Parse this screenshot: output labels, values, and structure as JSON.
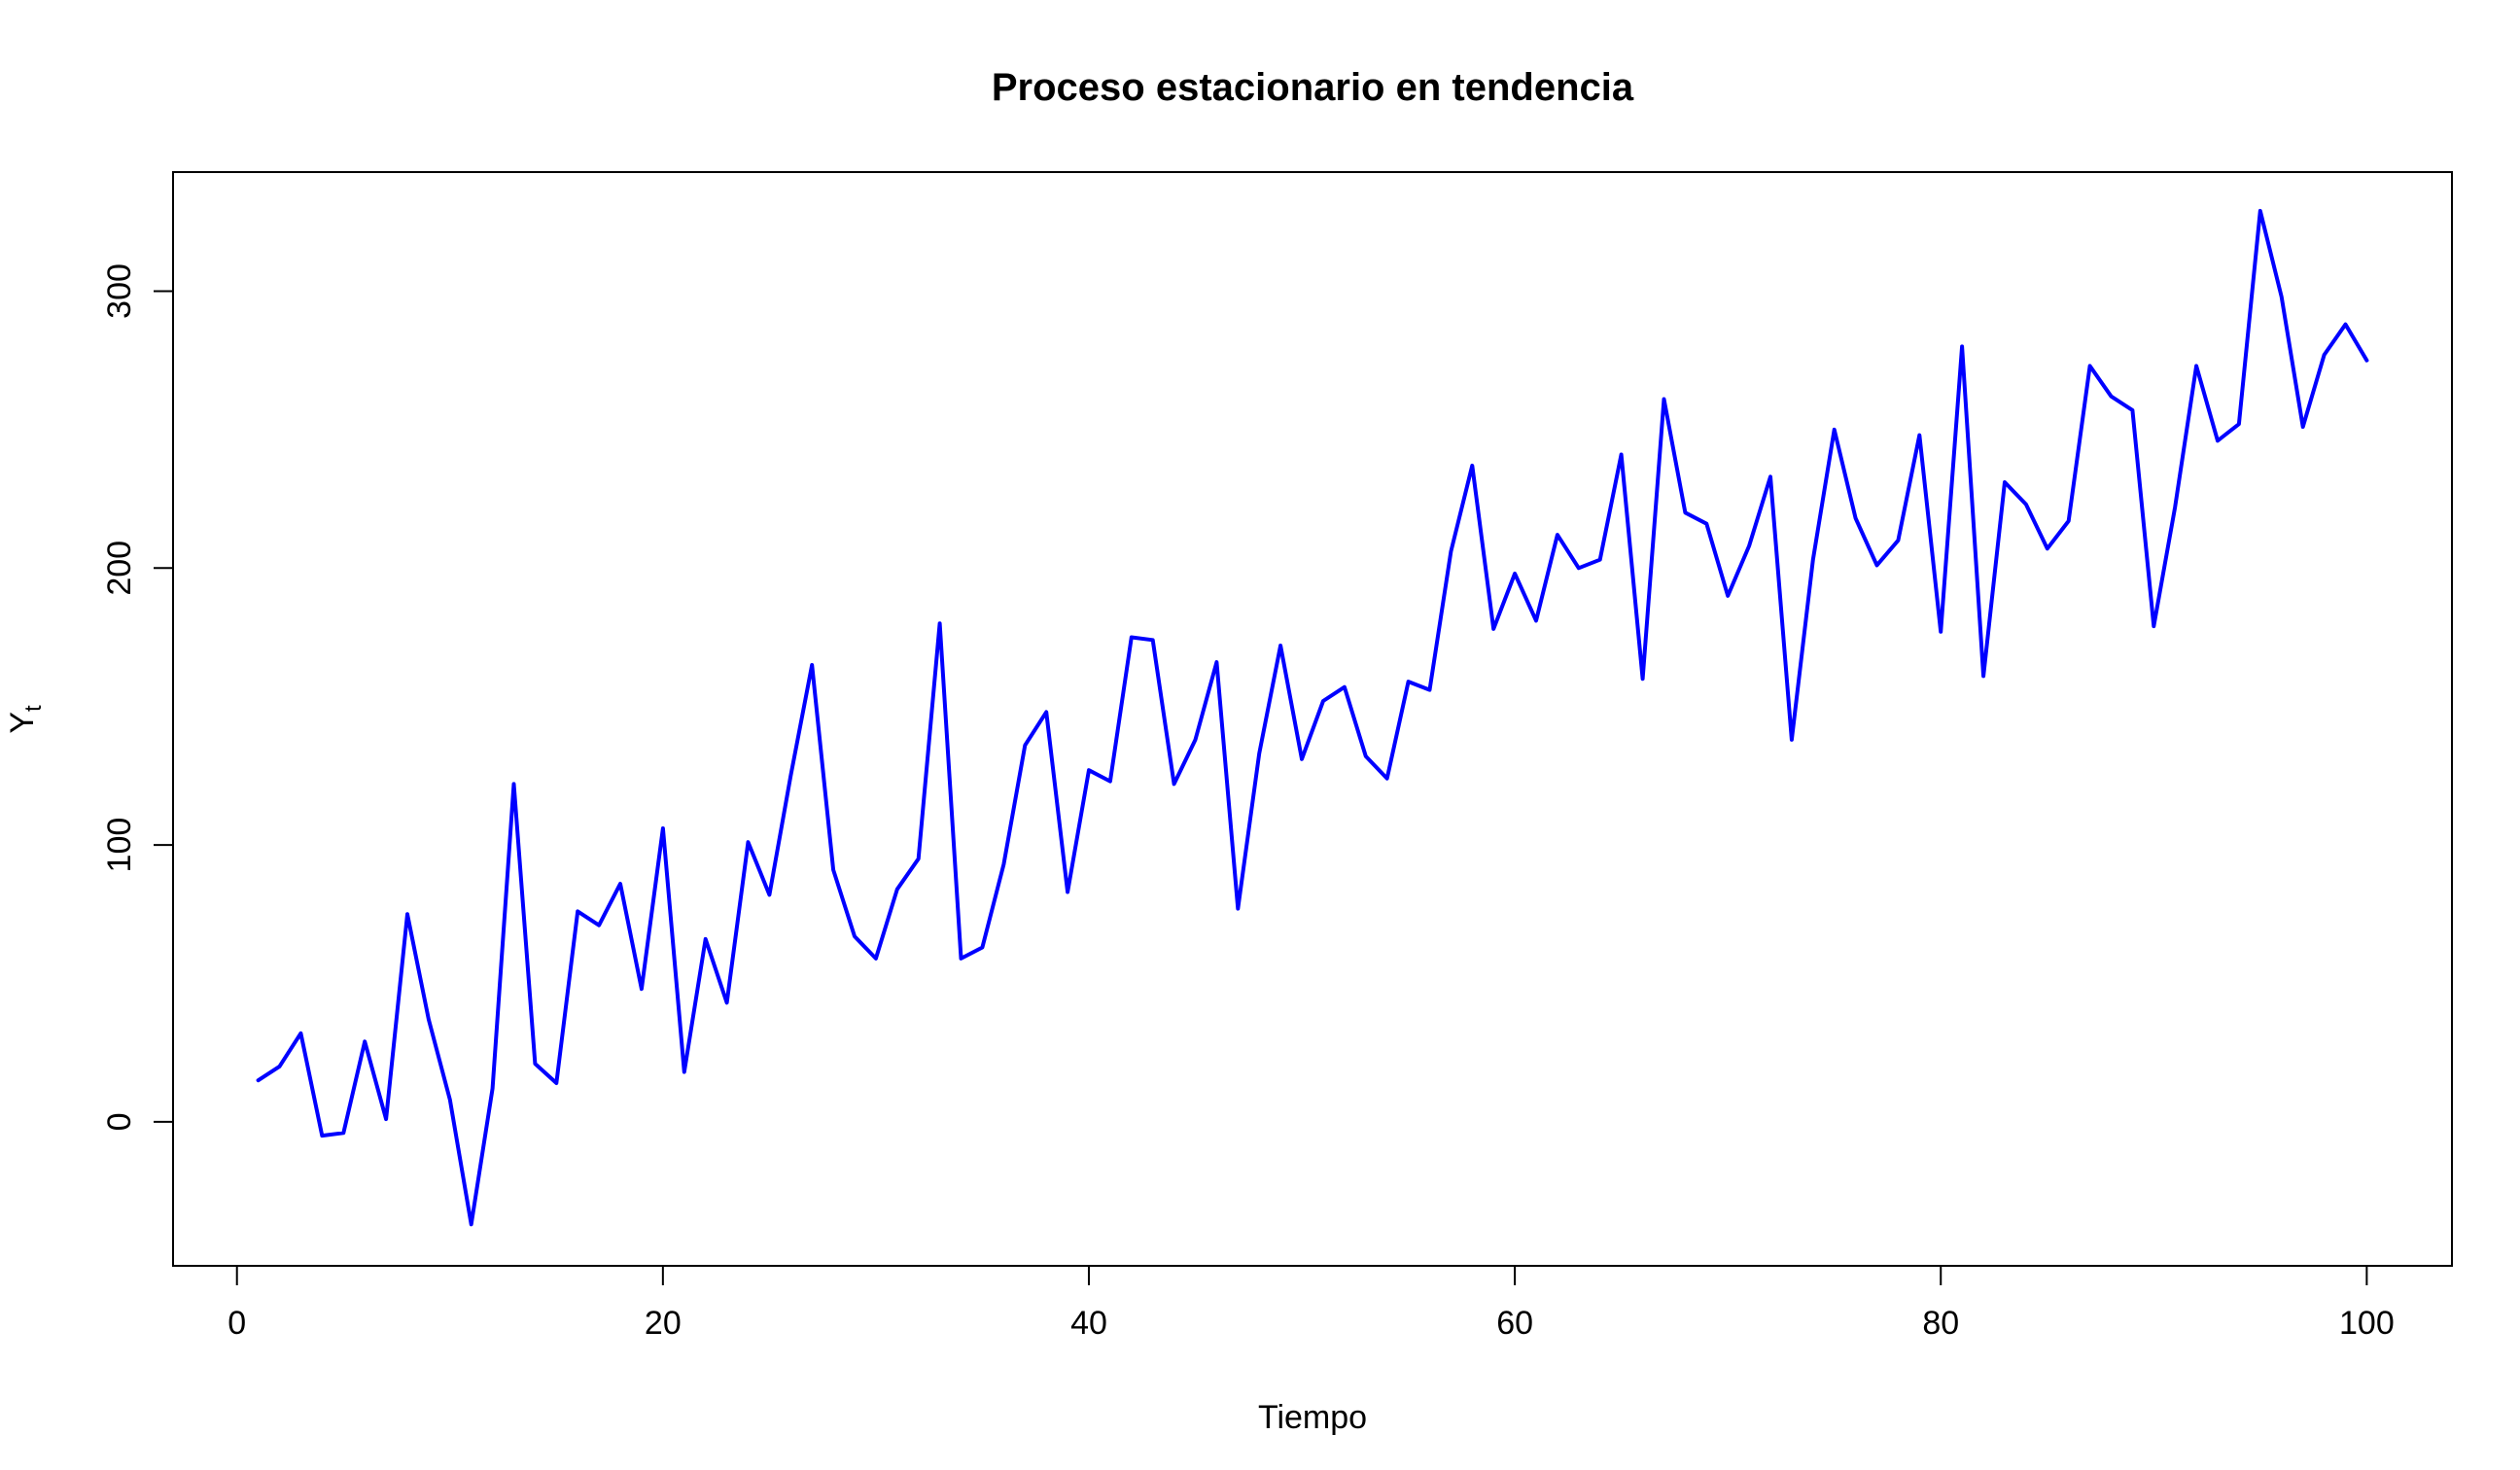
{
  "chart_data": {
    "type": "line",
    "title": "Proceso estacionario en tendencia",
    "xlabel": "Tiempo",
    "ylabel": {
      "main": "Y",
      "subscript": "t"
    },
    "xlim": [
      -3,
      104
    ],
    "ylim": [
      -52,
      343
    ],
    "xticks": [
      0,
      20,
      40,
      60,
      80,
      100
    ],
    "yticks": [
      0,
      100,
      200,
      300
    ],
    "grid": false,
    "legend": "none",
    "series": [
      {
        "color": "#0000ff",
        "x": [
          1,
          2,
          3,
          4,
          5,
          6,
          7,
          8,
          9,
          10,
          11,
          12,
          13,
          14,
          15,
          16,
          17,
          18,
          19,
          20,
          21,
          22,
          23,
          24,
          25,
          26,
          27,
          28,
          29,
          30,
          31,
          32,
          33,
          34,
          35,
          36,
          37,
          38,
          39,
          40,
          41,
          42,
          43,
          44,
          45,
          46,
          47,
          48,
          49,
          50,
          51,
          52,
          53,
          54,
          55,
          56,
          57,
          58,
          59,
          60,
          61,
          62,
          63,
          64,
          65,
          66,
          67,
          68,
          69,
          70,
          71,
          72,
          73,
          74,
          75,
          76,
          77,
          78,
          79,
          80,
          81,
          82,
          83,
          84,
          85,
          86,
          87,
          88,
          89,
          90,
          91,
          92,
          93,
          94,
          95,
          96,
          97,
          98,
          99,
          100
        ],
        "y": [
          15,
          20,
          32,
          -5,
          -4,
          29,
          1,
          75,
          37,
          8,
          -37,
          12,
          122,
          21,
          14,
          76,
          71,
          86,
          48,
          106,
          18,
          66,
          43,
          101,
          82,
          125,
          165,
          91,
          67,
          59,
          84,
          95,
          180,
          59,
          63,
          93,
          136,
          148,
          83,
          127,
          123,
          175,
          174,
          122,
          138,
          166,
          77,
          133,
          172,
          131,
          152,
          157,
          132,
          124,
          159,
          156,
          206,
          237,
          178,
          198,
          181,
          212,
          200,
          203,
          241,
          160,
          261,
          220,
          216,
          190,
          208,
          233,
          138,
          203,
          250,
          218,
          201,
          210,
          248,
          177,
          280,
          161,
          231,
          223,
          207,
          217,
          273,
          262,
          257,
          179,
          222,
          273,
          246,
          252,
          329,
          298,
          251,
          277,
          288,
          275
        ]
      }
    ]
  }
}
